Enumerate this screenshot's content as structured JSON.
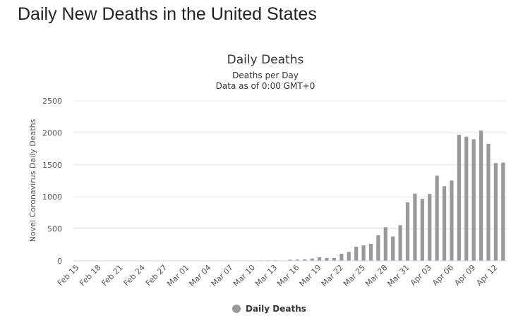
{
  "page": {
    "heading": "Daily New Deaths in the United States"
  },
  "colors": {
    "bar": "#999999",
    "legend_marker": "#999999"
  },
  "chart_data": {
    "type": "bar",
    "title": "Daily Deaths",
    "subtitle": "Deaths per Day",
    "subtitle2": "Data as of 0:00 GMT+0",
    "xlabel": "",
    "ylabel": "Novel Coronavirus Daily Deaths",
    "ylim": [
      0,
      2500
    ],
    "yticks": [
      0,
      500,
      1000,
      1500,
      2000,
      2500
    ],
    "grid": true,
    "legend": {
      "position": "bottom",
      "items": [
        "Daily Deaths"
      ]
    },
    "categories": [
      "Feb 15",
      "Feb 16",
      "Feb 17",
      "Feb 18",
      "Feb 19",
      "Feb 20",
      "Feb 21",
      "Feb 22",
      "Feb 23",
      "Feb 24",
      "Feb 25",
      "Feb 26",
      "Feb 27",
      "Feb 28",
      "Feb 29",
      "Mar 01",
      "Mar 02",
      "Mar 03",
      "Mar 04",
      "Mar 05",
      "Mar 06",
      "Mar 07",
      "Mar 08",
      "Mar 09",
      "Mar 10",
      "Mar 11",
      "Mar 12",
      "Mar 13",
      "Mar 14",
      "Mar 15",
      "Mar 16",
      "Mar 17",
      "Mar 18",
      "Mar 19",
      "Mar 20",
      "Mar 21",
      "Mar 22",
      "Mar 23",
      "Mar 24",
      "Mar 25",
      "Mar 26",
      "Mar 27",
      "Mar 28",
      "Mar 29",
      "Mar 30",
      "Mar 31",
      "Apr 01",
      "Apr 02",
      "Apr 03",
      "Apr 04",
      "Apr 05",
      "Apr 06",
      "Apr 07",
      "Apr 08",
      "Apr 09",
      "Apr 10",
      "Apr 11",
      "Apr 12",
      "Apr 13"
    ],
    "xtick_labels": [
      "Feb 15",
      "Feb 18",
      "Feb 21",
      "Feb 24",
      "Feb 27",
      "Mar 01",
      "Mar 04",
      "Mar 07",
      "Mar 10",
      "Mar 13",
      "Mar 16",
      "Mar 19",
      "Mar 22",
      "Mar 25",
      "Mar 28",
      "Mar 31",
      "Apr 03",
      "Apr 06",
      "Apr 09",
      "Apr 12"
    ],
    "series": [
      {
        "name": "Daily Deaths",
        "values": [
          0,
          0,
          0,
          0,
          0,
          0,
          0,
          0,
          0,
          0,
          0,
          0,
          0,
          0,
          1,
          1,
          4,
          1,
          2,
          1,
          2,
          3,
          3,
          4,
          6,
          8,
          8,
          9,
          6,
          17,
          20,
          23,
          36,
          55,
          45,
          44,
          111,
          140,
          221,
          241,
          265,
          402,
          525,
          380,
          558,
          913,
          1049,
          968,
          1045,
          1331,
          1165,
          1255,
          1970,
          1941,
          1900,
          2035,
          1830,
          1528,
          1535
        ]
      }
    ]
  }
}
